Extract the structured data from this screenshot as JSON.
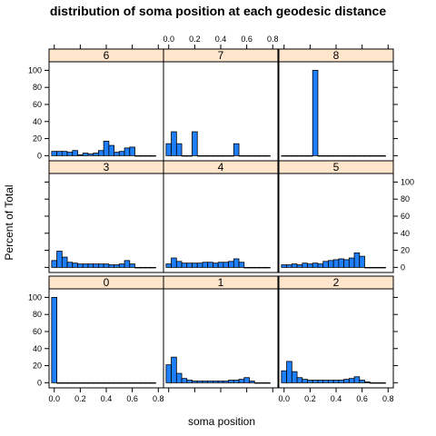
{
  "chart_data": {
    "type": "bar",
    "title": "distribution of soma position at each geodesic distance",
    "xlabel": "soma position",
    "ylabel": "Percent of Total",
    "xlim": [
      -0.04,
      0.84
    ],
    "ylim": [
      -6,
      110
    ],
    "x_ticks": [
      "0.0",
      "0.2",
      "0.4",
      "0.6",
      "0.8"
    ],
    "y_ticks": [
      "0",
      "20",
      "40",
      "60",
      "80",
      "100"
    ],
    "bin_width": 0.04,
    "bin_start": -0.02,
    "bar_color": "#1e7fff",
    "strip_color": "#ffe5cc",
    "panels": [
      {
        "name": "0",
        "values": [
          100,
          0,
          0,
          0,
          0,
          0,
          0,
          0,
          0,
          0,
          0,
          0,
          0,
          0,
          0,
          0,
          0,
          0,
          0,
          0
        ]
      },
      {
        "name": "1",
        "values": [
          21,
          30,
          11,
          5,
          3,
          2,
          2,
          2,
          2,
          2,
          2,
          2,
          3,
          3,
          4,
          6,
          2,
          0,
          0,
          0
        ]
      },
      {
        "name": "2",
        "values": [
          14,
          25,
          13,
          6,
          4,
          3,
          3,
          3,
          3,
          3,
          3,
          3,
          4,
          5,
          7,
          3,
          1,
          0,
          0,
          0
        ]
      },
      {
        "name": "3",
        "values": [
          8,
          19,
          12,
          6,
          5,
          4,
          4,
          4,
          4,
          4,
          4,
          3,
          3,
          4,
          8,
          4,
          0,
          0,
          0,
          0
        ]
      },
      {
        "name": "4",
        "values": [
          4,
          11,
          7,
          5,
          5,
          5,
          5,
          6,
          6,
          5,
          6,
          6,
          7,
          10,
          6,
          0,
          0,
          0,
          0,
          0
        ]
      },
      {
        "name": "5",
        "values": [
          3,
          3,
          4,
          3,
          5,
          4,
          5,
          4,
          7,
          8,
          9,
          10,
          9,
          11,
          17,
          13,
          0,
          0,
          0,
          0
        ]
      },
      {
        "name": "6",
        "values": [
          5,
          5,
          5,
          4,
          6,
          1,
          3,
          2,
          3,
          6,
          17,
          12,
          4,
          5,
          9,
          10,
          0,
          0,
          0,
          0
        ]
      },
      {
        "name": "7",
        "values": [
          14,
          28,
          14,
          0,
          0,
          28,
          0,
          0,
          0,
          0,
          0,
          0,
          0,
          14,
          0,
          0,
          0,
          0,
          0,
          0
        ]
      },
      {
        "name": "8",
        "values": [
          0,
          0,
          0,
          0,
          0,
          0,
          100,
          0,
          0,
          0,
          0,
          0,
          0,
          0,
          0,
          0,
          0,
          0,
          0,
          0
        ]
      }
    ]
  }
}
